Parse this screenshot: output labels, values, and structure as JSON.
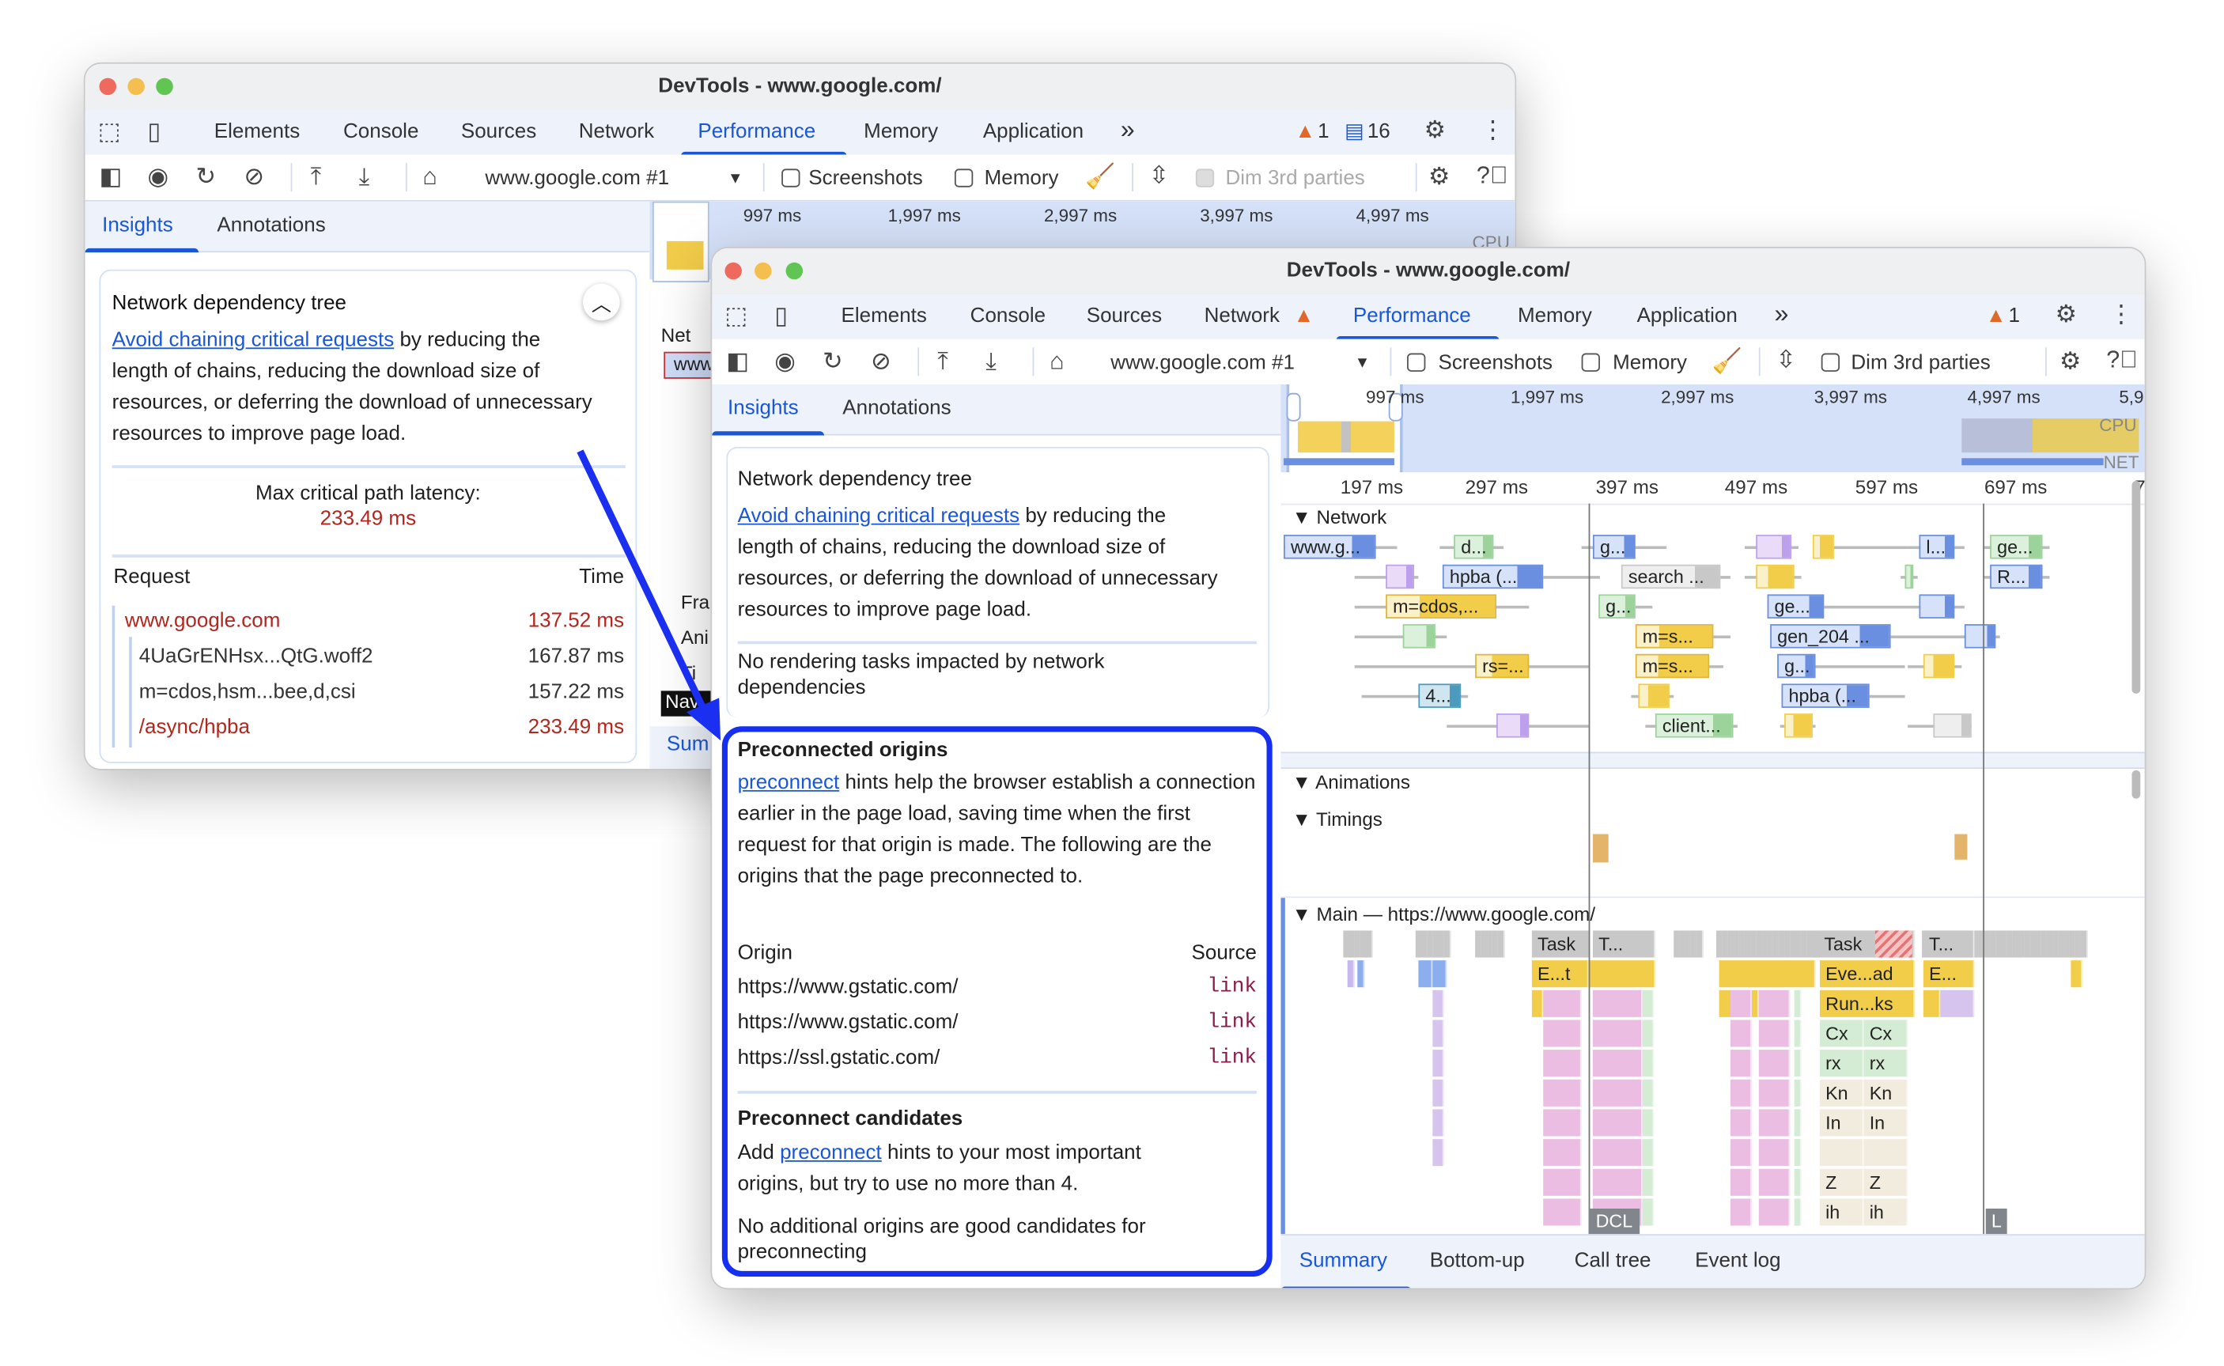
{
  "colors": {
    "accent": "#1a57d6",
    "highlight_border": "#1530f0",
    "error_red": "#b3261e",
    "warning": "#e0692a",
    "link_source": "#8a1a4a"
  },
  "back_window": {
    "title": "DevTools - www.google.com/",
    "tabs": [
      "Elements",
      "Console",
      "Sources",
      "Network",
      "Performance",
      "Memory",
      "Application"
    ],
    "more_tabs": "»",
    "active_tab": "Performance",
    "warning_count": "1",
    "message_count": "16",
    "toolbar": {
      "recording_select": "www.google.com #1",
      "screenshots_label": "Screenshots",
      "memory_label": "Memory",
      "dim_label": "Dim 3rd parties"
    },
    "panel_tabs": [
      "Insights",
      "Annotations"
    ],
    "insight": {
      "title": "Network dependency tree",
      "link": "Avoid chaining critical requests",
      "desc": " by reducing the length of chains, reducing the download size of resources, or deferring the download of unnecessary resources to improve page load.",
      "latency_label": "Max critical path latency:",
      "latency_value": "233.49 ms",
      "col_request": "Request",
      "col_time": "Time",
      "rows": [
        {
          "name": "www.google.com",
          "time": "137.52 ms"
        },
        {
          "name": "4UaGrENHsx...QtG.woff2",
          "time": "167.87 ms"
        },
        {
          "name": "m=cdos,hsm...bee,d,csi",
          "time": "157.22 ms"
        },
        {
          "name": "/async/hpba",
          "time": "233.49 ms"
        }
      ]
    },
    "ruler": [
      "997 ms",
      "1,997 ms",
      "2,997 ms",
      "3,997 ms",
      "4,997 ms"
    ],
    "cpu_label": "CPU",
    "side_fragments": [
      "Net",
      "www",
      "Fra",
      "Ani",
      "Ti",
      "Nav",
      "Sum"
    ]
  },
  "front_window": {
    "title": "DevTools - www.google.com/",
    "tabs": [
      "Elements",
      "Console",
      "Sources",
      "Network",
      "Performance",
      "Memory",
      "Application"
    ],
    "more_tabs": "»",
    "active_tab": "Performance",
    "warning_count": "1",
    "toolbar": {
      "recording_select": "www.google.com #1",
      "screenshots_label": "Screenshots",
      "memory_label": "Memory",
      "dim_label": "Dim 3rd parties"
    },
    "panel_tabs": [
      "Insights",
      "Annotations"
    ],
    "ndt": {
      "title": "Network dependency tree",
      "link": "Avoid chaining critical requests",
      "desc": " by reducing the length of chains, reducing the download size of resources, or deferring the download of unnecessary resources to improve page load.",
      "no_render": "No rendering tasks impacted by network dependencies"
    },
    "preconnected": {
      "title": "Preconnected origins",
      "link": "preconnect",
      "desc": " hints help the browser establish a connection earlier in the page load, saving time when the first request for that origin is made. The following are the origins that the page preconnected to.",
      "col_origin": "Origin",
      "col_source": "Source",
      "rows": [
        {
          "origin": "https://www.gstatic.com/",
          "source": "link"
        },
        {
          "origin": "https://www.gstatic.com/",
          "source": "link"
        },
        {
          "origin": "https://ssl.gstatic.com/",
          "source": "link"
        }
      ]
    },
    "candidates": {
      "title": "Preconnect candidates",
      "pre": "Add ",
      "link": "preconnect",
      "post": " hints to your most important origins, but try to use no more than 4.",
      "none": "No additional origins are good candidates for preconnecting"
    },
    "overview_ruler": [
      "997 ms",
      "1,997 ms",
      "2,997 ms",
      "3,997 ms",
      "4,997 ms",
      "5,9"
    ],
    "cpu_label": "CPU",
    "net_label": "NET",
    "detail_ruler": [
      "197 ms",
      "297 ms",
      "397 ms",
      "497 ms",
      "597 ms",
      "697 ms",
      "7"
    ],
    "tracks": {
      "network": "Network",
      "animations": "Animations",
      "timings": "Timings",
      "main": "Main — https://www.google.com/"
    },
    "network_labels": [
      "www.g...",
      "d...",
      "g...",
      "l...",
      "ge...",
      "hpba (...",
      "search ...",
      "R...",
      "m=cdos,...",
      "g...",
      "ge...",
      "m=s...",
      "gen_204 ...",
      "rs=...",
      "m=s...",
      "g...",
      "4...",
      "hpba (...",
      "client..."
    ],
    "flame_labels": [
      "Task",
      "T...",
      "Task",
      "T...",
      "E...t",
      "Eve...ad",
      "E...",
      "Run...ks",
      "Cx",
      "Cx",
      "rx",
      "rx",
      "Kn",
      "Kn",
      "In",
      "In",
      "Z",
      "Z",
      "ih",
      "ih"
    ],
    "markers": {
      "dcl": "DCL",
      "load": "L"
    },
    "bottom_tabs": [
      "Summary",
      "Bottom-up",
      "Call tree",
      "Event log"
    ],
    "active_bottom_tab": "Summary"
  }
}
